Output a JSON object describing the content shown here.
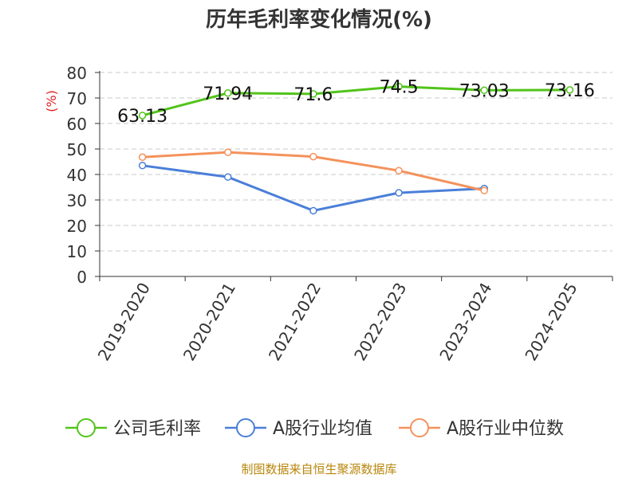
{
  "chart_data": {
    "type": "line",
    "title": "历年毛利率变化情况(%)",
    "ylabel": "(%)",
    "xlabel": "",
    "categories": [
      "2019-2020",
      "2020-2021",
      "2021-2022",
      "2022-2023",
      "2023-2024",
      "2024-2025"
    ],
    "ylim": [
      0,
      80
    ],
    "yticks": [
      0,
      10,
      20,
      30,
      40,
      50,
      60,
      70,
      80
    ],
    "grid": true,
    "legend_position": "bottom",
    "series": [
      {
        "name": "公司毛利率",
        "color": "#52c41a",
        "values": [
          63.13,
          71.94,
          71.6,
          74.5,
          73.03,
          73.16
        ],
        "labels": [
          "63.13",
          "71.94",
          "71.6",
          "74.5",
          "73.03",
          "73.16"
        ]
      },
      {
        "name": "A股行业均值",
        "color": "#4a7fd8",
        "values": [
          43.5,
          39,
          25.8,
          32.8,
          34.5,
          null
        ]
      },
      {
        "name": "A股行业中位数",
        "color": "#f4925b",
        "values": [
          46.8,
          48.7,
          47,
          41.5,
          33.7,
          null
        ]
      }
    ]
  },
  "source": "制图数据来自恒生聚源数据库"
}
